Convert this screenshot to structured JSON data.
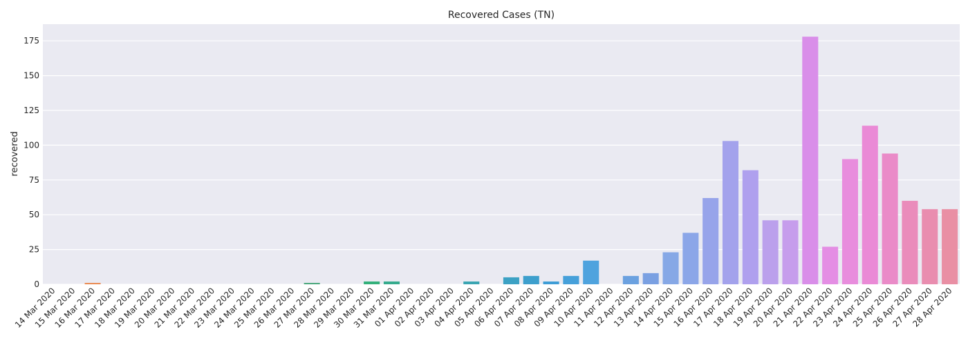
{
  "chart_data": {
    "type": "bar",
    "title": "Recovered Cases (TN)",
    "xlabel": "",
    "ylabel": "recovered",
    "ylim": [
      0,
      187
    ],
    "yticks": [
      0,
      25,
      50,
      75,
      100,
      125,
      150,
      175
    ],
    "grid": true,
    "categories": [
      "14 Mar 2020",
      "15 Mar 2020",
      "16 Mar 2020",
      "17 Mar 2020",
      "18 Mar 2020",
      "19 Mar 2020",
      "20 Mar 2020",
      "21 Mar 2020",
      "22 Mar 2020",
      "23 Mar 2020",
      "24 Mar 2020",
      "25 Mar 2020",
      "26 Mar 2020",
      "27 Mar 2020",
      "28 Mar 2020",
      "29 Mar 2020",
      "30 Mar 2020",
      "31 Mar 2020",
      "01 Apr 2020",
      "02 Apr 2020",
      "03 Apr 2020",
      "04 Apr 2020",
      "05 Apr 2020",
      "06 Apr 2020",
      "07 Apr 2020",
      "08 Apr 2020",
      "09 Apr 2020",
      "10 Apr 2020",
      "11 Apr 2020",
      "12 Apr 2020",
      "13 Apr 2020",
      "14 Apr 2020",
      "15 Apr 2020",
      "16 Apr 2020",
      "17 Apr 2020",
      "18 Apr 2020",
      "19 Apr 2020",
      "20 Apr 2020",
      "21 Apr 2020",
      "22 Apr 2020",
      "23 Apr 2020",
      "24 Apr 2020",
      "25 Apr 2020",
      "26 Apr 2020",
      "27 Apr 2020",
      "28 Apr 2020"
    ],
    "values": [
      0,
      0,
      1,
      0,
      0,
      0,
      0,
      0,
      0,
      0,
      0,
      0,
      0,
      1,
      0,
      0,
      2,
      2,
      0,
      0,
      0,
      2,
      0,
      5,
      6,
      2,
      6,
      17,
      0,
      6,
      8,
      23,
      37,
      62,
      103,
      82,
      46,
      46,
      178,
      27,
      90,
      114,
      94,
      60,
      54,
      54
    ],
    "colors": [
      "#f77189",
      "#f7745f",
      "#e98a52",
      "#da9a4a",
      "#ce9f4b",
      "#c2a34e",
      "#b6a752",
      "#a8ab58",
      "#98ad5f",
      "#86b166",
      "#70b36d",
      "#59b56f",
      "#4fb374",
      "#4aa77b",
      "#49b27f",
      "#37a878",
      "#33b07a",
      "#36ab8d",
      "#38aa98",
      "#38a9a1",
      "#39a7aa",
      "#3aa5b2",
      "#3ba3bb",
      "#3ca1c4",
      "#3d9fcd",
      "#3e9dd6",
      "#46a0da",
      "#4fa3de",
      "#5da2df",
      "#6ba1e0",
      "#7aa0e2",
      "#86a8e6",
      "#8ba6e8",
      "#97a4ea",
      "#a3a2ec",
      "#afa0ee",
      "#bba0ec",
      "#c69dec",
      "#d98ee9",
      "#e48ee4",
      "#e88ddd",
      "#ea8ad6",
      "#ea8bc8",
      "#ea8cbb",
      "#e98daf",
      "#e98fa4"
    ]
  }
}
